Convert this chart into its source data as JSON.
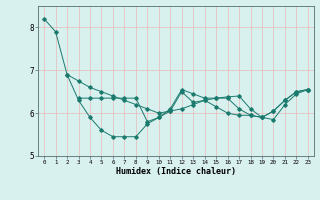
{
  "xlabel": "Humidex (Indice chaleur)",
  "bg_color": "#d8f0ee",
  "line_color": "#1a7a6e",
  "grid_color_h": "#e8b8b8",
  "grid_color_v": "#e8b8b8",
  "xlim": [
    -0.5,
    23.5
  ],
  "ylim": [
    5.0,
    8.5
  ],
  "yticks": [
    5,
    6,
    7,
    8
  ],
  "series1": {
    "x": [
      0,
      1,
      2,
      3,
      4,
      5,
      6,
      7,
      8,
      9,
      10,
      11,
      12,
      13,
      14,
      15,
      16,
      17,
      18,
      19,
      20,
      21,
      22,
      23
    ],
    "y": [
      8.2,
      7.9,
      6.9,
      6.3,
      5.9,
      5.6,
      5.45,
      5.45,
      5.45,
      5.75,
      5.9,
      6.05,
      6.5,
      6.25,
      6.3,
      6.15,
      6.0,
      5.95,
      5.95,
      5.9,
      6.05,
      6.3,
      6.5,
      6.55
    ]
  },
  "series2": {
    "x": [
      2,
      3,
      4,
      5,
      6,
      7,
      8,
      9,
      10,
      11,
      12,
      13,
      14,
      15,
      16,
      17,
      18,
      19,
      20,
      21,
      22,
      23
    ],
    "y": [
      6.9,
      6.75,
      6.6,
      6.5,
      6.4,
      6.3,
      6.2,
      6.1,
      6.0,
      6.05,
      6.1,
      6.2,
      6.3,
      6.35,
      6.38,
      6.4,
      6.1,
      5.9,
      5.85,
      6.2,
      6.45,
      6.55
    ]
  },
  "series3": {
    "x": [
      3,
      4,
      5,
      6,
      7,
      8,
      9,
      10,
      11,
      12,
      13,
      14,
      15,
      16,
      17,
      18,
      19,
      20,
      21,
      22,
      23
    ],
    "y": [
      6.35,
      6.35,
      6.35,
      6.35,
      6.35,
      6.35,
      5.8,
      5.9,
      6.1,
      6.55,
      6.45,
      6.35,
      6.35,
      6.35,
      6.1,
      5.95,
      5.9,
      6.05,
      6.3,
      6.5,
      6.55
    ]
  }
}
